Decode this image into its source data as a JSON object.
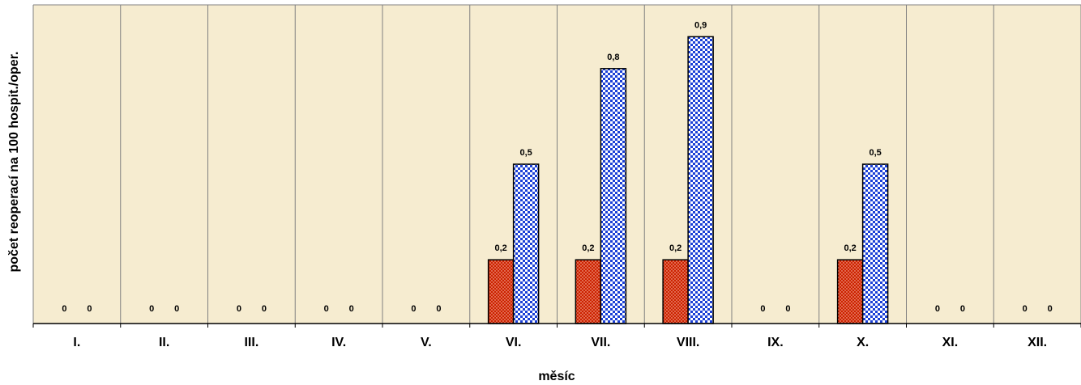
{
  "chart_data": {
    "type": "bar",
    "title": "",
    "xlabel": "měsíc",
    "ylabel": "počet reoperací na 100 hospit./oper.",
    "categories": [
      "I.",
      "II.",
      "III.",
      "IV.",
      "V.",
      "VI.",
      "VII.",
      "VIII.",
      "IX.",
      "X.",
      "XI.",
      "XII."
    ],
    "series": [
      {
        "values": [
          0,
          0,
          0,
          0,
          0,
          0.2,
          0.2,
          0.2,
          0,
          0.2,
          0,
          0
        ],
        "labels": [
          "0",
          "0",
          "0",
          "0",
          "0",
          "0,2",
          "0,2",
          "0,2",
          "0",
          "0,2",
          "0",
          "0"
        ],
        "color": "#cc2200",
        "pattern": "dots"
      },
      {
        "values": [
          0,
          0,
          0,
          0,
          0,
          0.5,
          0.8,
          0.9,
          0,
          0.5,
          0,
          0
        ],
        "labels": [
          "0",
          "0",
          "0",
          "0",
          "0",
          "0,5",
          "0,8",
          "0,9",
          "0",
          "0,5",
          "0",
          "0"
        ],
        "color": "#1a3fd6",
        "pattern": "checker"
      }
    ],
    "ylim": [
      0,
      1.0
    ],
    "grid": "vertical",
    "legend": "none",
    "colors": {
      "background": "#f6ecd0",
      "gridline": "#808080",
      "axis": "#000000"
    }
  }
}
